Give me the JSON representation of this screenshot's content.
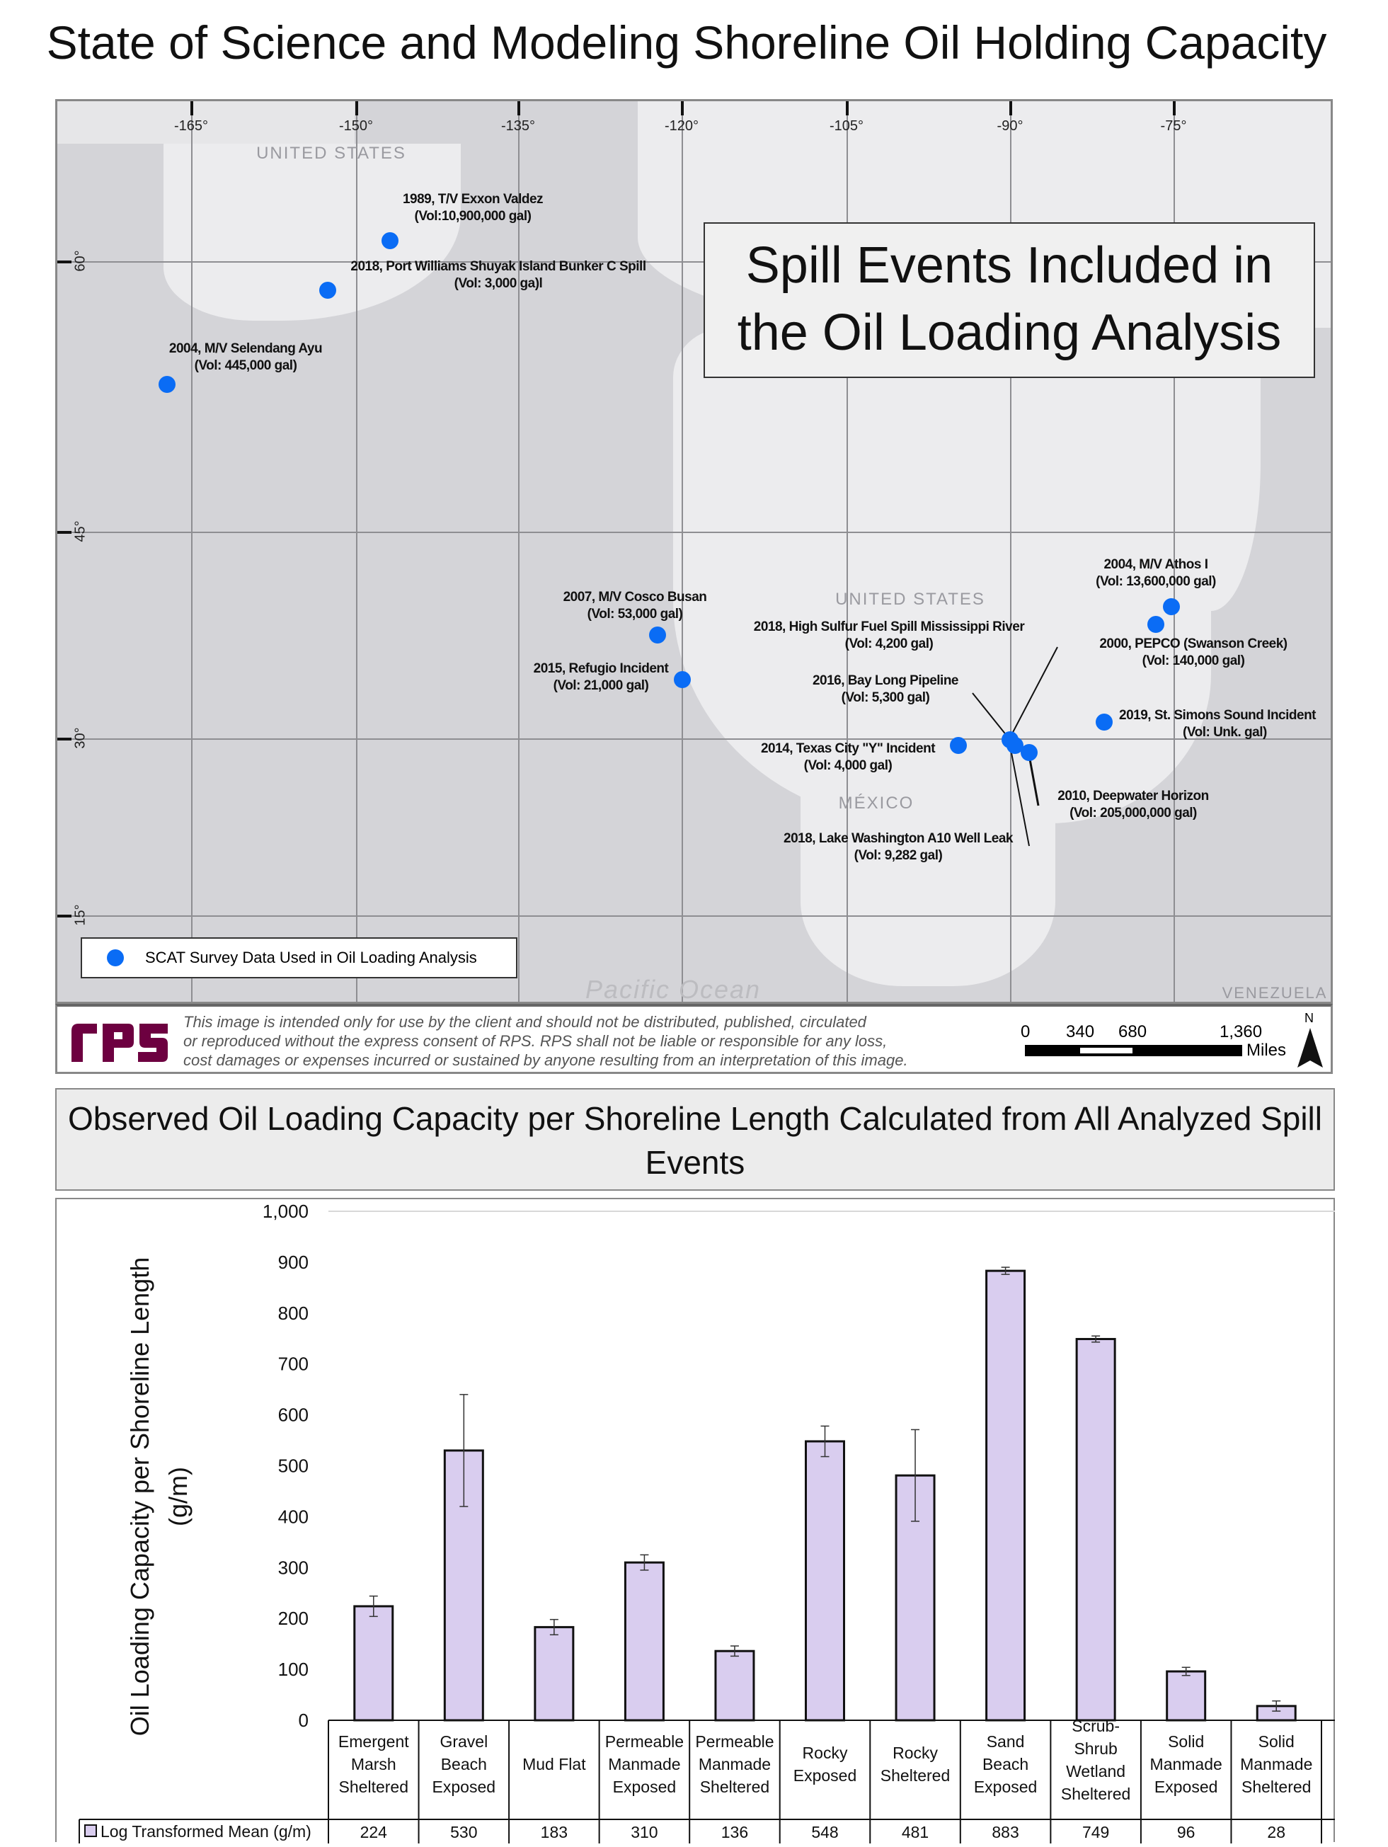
{
  "title": "State of Science and Modeling Shoreline Oil Holding Capacity",
  "map": {
    "longitude_labels": [
      "-165°",
      "-150°",
      "-135°",
      "-120°",
      "-105°",
      "-90°",
      "-75°"
    ],
    "latitude_labels": [
      "60°",
      "45°",
      "30°",
      "15°"
    ],
    "place_names": {
      "us_alaska": "UNITED STATES",
      "us": "UNITED STATES",
      "mexico": "MÉXICO",
      "pacific": "Pacific Ocean",
      "venezuela": "VENEZUELA"
    },
    "callout": "Spill Events Included in the Oil Loading Analysis",
    "legend_label": "SCAT Survey Data Used in Oil Loading Analysis",
    "point_color": "#0a6cf5",
    "events": [
      {
        "name": "1989, T/V Exxon Valdez",
        "vol": "(Vol:10,900,000 gal)"
      },
      {
        "name": "2018, Port Williams Shuyak Island Bunker C Spill",
        "vol": "(Vol: 3,000 ga)l"
      },
      {
        "name": "2004, M/V Selendang Ayu",
        "vol": "(Vol: 445,000 gal)"
      },
      {
        "name": "2007, M/V Cosco Busan",
        "vol": "(Vol: 53,000 gal)"
      },
      {
        "name": "2015, Refugio Incident",
        "vol": "(Vol: 21,000 gal)"
      },
      {
        "name": "2018, High Sulfur Fuel Spill Mississippi River",
        "vol": "(Vol: 4,200 gal)"
      },
      {
        "name": "2016, Bay Long Pipeline",
        "vol": "(Vol: 5,300 gal)"
      },
      {
        "name": "2014, Texas City \"Y\" Incident",
        "vol": "(Vol: 4,000 gal)"
      },
      {
        "name": "2018, Lake Washington A10 Well Leak",
        "vol": "(Vol: 9,282 gal)"
      },
      {
        "name": "2010, Deepwater Horizon",
        "vol": "(Vol: 205,000,000 gal)"
      },
      {
        "name": "2004, M/V Athos I",
        "vol": "(Vol: 13,600,000 gal)"
      },
      {
        "name": "2000, PEPCO (Swanson Creek)",
        "vol": "(Vol: 140,000 gal)"
      },
      {
        "name": "2019, St. Simons Sound Incident",
        "vol": "(Vol: Unk. gal)"
      }
    ],
    "footer": {
      "disclaimer": [
        "This image is intended only for use by the client and should not be distributed, published, circulated",
        "or reproduced without the express consent of RPS. RPS shall not be liable or responsible for any loss,",
        "cost damages or expenses incurred or sustained by anyone resulting from an interpretation of this image."
      ],
      "logo": "rps",
      "scale_labels": [
        "0",
        "340",
        "680",
        "1,360"
      ],
      "scale_unit": "Miles",
      "north": "N"
    }
  },
  "chart_data": {
    "type": "bar",
    "title": "Observed Oil Loading Capacity per Shoreline Length Calculated from All Analyzed Spill Events",
    "ylabel": "Oil Loading Capacity per Shoreline Length (g/m)",
    "ylim": [
      0,
      1000
    ],
    "yticks": [
      "0",
      "100",
      "200",
      "300",
      "400",
      "500",
      "600",
      "700",
      "800",
      "900",
      "1,000"
    ],
    "categories": [
      [
        "Emergent",
        "Marsh",
        "Sheltered"
      ],
      [
        "Gravel",
        "Beach",
        "Exposed"
      ],
      [
        "Mud Flat"
      ],
      [
        "Permeable",
        "Manmade",
        "Exposed"
      ],
      [
        "Permeable",
        "Manmade",
        "Sheltered"
      ],
      [
        "Rocky",
        "Exposed"
      ],
      [
        "Rocky",
        "Sheltered"
      ],
      [
        "Sand",
        "Beach",
        "Exposed"
      ],
      [
        "Scrub-",
        "Shrub",
        "Wetland",
        "Sheltered"
      ],
      [
        "Solid",
        "Manmade",
        "Exposed"
      ],
      [
        "Solid",
        "Manmade",
        "Sheltered"
      ]
    ],
    "series": [
      {
        "name": "Log Transformed Mean (g/m)",
        "values": [
          224,
          530,
          183,
          310,
          136,
          548,
          481,
          883,
          749,
          96,
          28
        ],
        "error": [
          20,
          110,
          15,
          15,
          10,
          30,
          90,
          7,
          6,
          8,
          10
        ],
        "color": "#d9cdef"
      }
    ],
    "value_labels": [
      "224",
      "530",
      "183",
      "310",
      "136",
      "548",
      "481",
      "883",
      "749",
      "96",
      "28"
    ],
    "legend": "Log Transformed Mean (g/m)"
  }
}
